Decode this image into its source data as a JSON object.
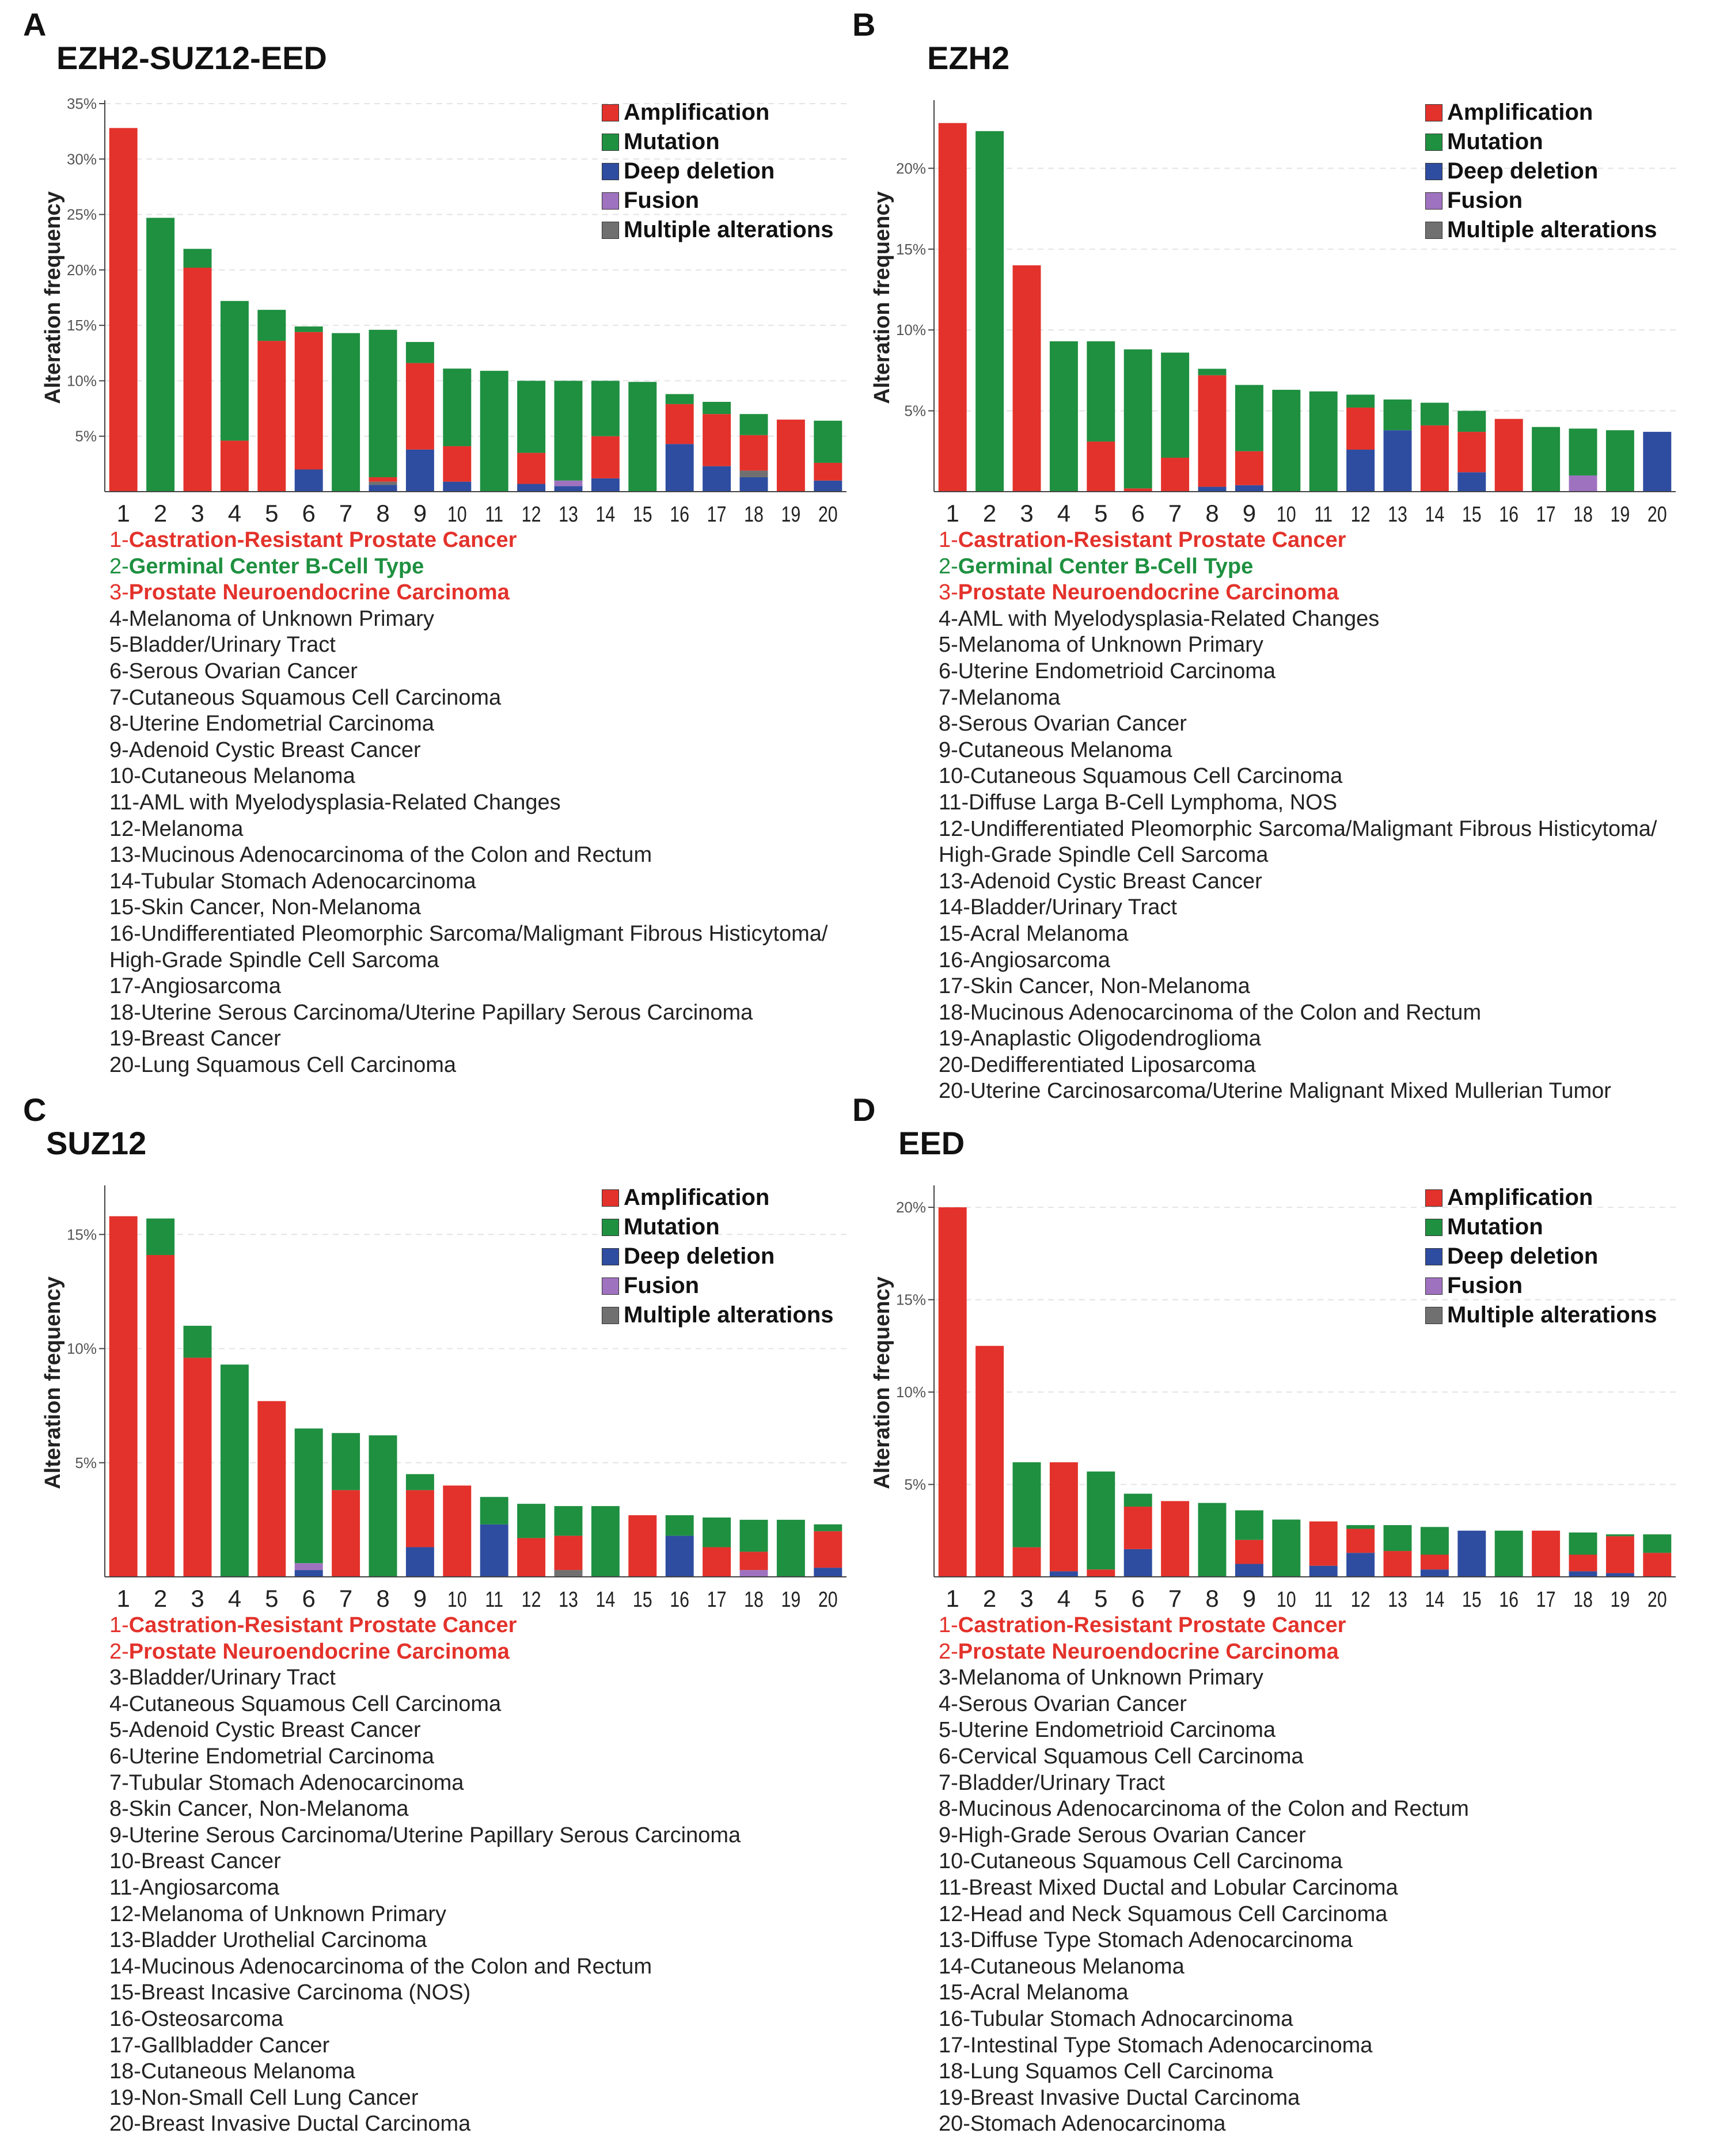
{
  "colors": {
    "amp": "#E3322B",
    "mut": "#1E9040",
    "del": "#2E4DA0",
    "fus": "#9F72C0",
    "mult": "#707070"
  },
  "legend": [
    {
      "key": "amp",
      "label": "Amplification"
    },
    {
      "key": "mut",
      "label": "Mutation"
    },
    {
      "key": "del",
      "label": "Deep deletion"
    },
    {
      "key": "fus",
      "label": "Fusion"
    },
    {
      "key": "mult",
      "label": "Multiple alterations"
    }
  ],
  "ylabel": "Alteration frequency",
  "chart_data": [
    {
      "type": "bar",
      "panel": "A",
      "title": "EZH2-SUZ12-EED",
      "ylim": [
        0,
        35
      ],
      "yticks": [
        5,
        10,
        15,
        20,
        25,
        30,
        35
      ],
      "categories": [
        "1",
        "2",
        "3",
        "4",
        "5",
        "6",
        "7",
        "8",
        "9",
        "10",
        "11",
        "12",
        "13",
        "14",
        "15",
        "16",
        "17",
        "18",
        "19",
        "20"
      ],
      "series": [
        {
          "name": "Deep deletion",
          "key": "del",
          "values": [
            0,
            0,
            0,
            0,
            0,
            2.0,
            0,
            0.6,
            3.8,
            0.9,
            0,
            0.7,
            0.5,
            1.2,
            0,
            4.3,
            2.3,
            1.3,
            0,
            1.0
          ]
        },
        {
          "name": "Fusion",
          "key": "fus",
          "values": [
            0,
            0,
            0,
            0,
            0,
            0,
            0,
            0,
            0,
            0,
            0,
            0,
            0.5,
            0,
            0,
            0,
            0,
            0,
            0,
            0
          ]
        },
        {
          "name": "Multiple alterations",
          "key": "mult",
          "values": [
            0,
            0,
            0,
            0,
            0,
            0,
            0,
            0.3,
            0,
            0,
            0,
            0,
            0,
            0,
            0,
            0,
            0,
            0.6,
            0,
            0
          ]
        },
        {
          "name": "Amplification",
          "key": "amp",
          "values": [
            32.8,
            0,
            20.2,
            4.6,
            13.6,
            12.4,
            0,
            0.4,
            7.8,
            3.2,
            0,
            2.8,
            0,
            3.8,
            0,
            3.6,
            4.7,
            3.2,
            6.5,
            1.6
          ]
        },
        {
          "name": "Mutation",
          "key": "mut",
          "values": [
            0,
            24.7,
            1.7,
            12.6,
            2.8,
            0.5,
            14.3,
            13.3,
            1.9,
            7.0,
            10.9,
            6.5,
            9.0,
            5.0,
            9.9,
            0.9,
            1.1,
            1.9,
            0,
            3.8
          ]
        }
      ],
      "list": [
        {
          "text": "1-Castration-Resistant Prostate Cancer",
          "color": "red"
        },
        {
          "text": "2-Germinal Center B-Cell Type",
          "color": "green"
        },
        {
          "text": "3-Prostate Neuroendocrine Carcinoma",
          "color": "red"
        },
        {
          "text": "4-Melanoma of Unknown Primary"
        },
        {
          "text": "5-Bladder/Urinary Tract"
        },
        {
          "text": "6-Serous Ovarian Cancer"
        },
        {
          "text": "7-Cutaneous Squamous Cell Carcinoma"
        },
        {
          "text": "8-Uterine Endometrial Carcinoma"
        },
        {
          "text": "9-Adenoid Cystic Breast Cancer"
        },
        {
          "text": "10-Cutaneous Melanoma"
        },
        {
          "text": "11-AML with Myelodysplasia-Related Changes"
        },
        {
          "text": "12-Melanoma"
        },
        {
          "text": "13-Mucinous Adenocarcinoma of the Colon and Rectum"
        },
        {
          "text": "14-Tubular Stomach Adenocarcinoma"
        },
        {
          "text": "15-Skin Cancer, Non-Melanoma"
        },
        {
          "text": "16-Undifferentiated Pleomorphic Sarcoma/Maligmant Fibrous Histicytoma/"
        },
        {
          "text": "High-Grade Spindle Cell Sarcoma"
        },
        {
          "text": "17-Angiosarcoma"
        },
        {
          "text": "18-Uterine Serous Carcinoma/Uterine Papillary Serous Carcinoma"
        },
        {
          "text": "19-Breast Cancer"
        },
        {
          "text": "20-Lung Squamous Cell Carcinoma"
        }
      ]
    },
    {
      "type": "bar",
      "panel": "B",
      "title": "EZH2",
      "ylim": [
        0,
        24
      ],
      "yticks": [
        5,
        10,
        15,
        20
      ],
      "categories": [
        "1",
        "2",
        "3",
        "4",
        "5",
        "6",
        "7",
        "8",
        "9",
        "10",
        "11",
        "12",
        "13",
        "14",
        "15",
        "16",
        "17",
        "18",
        "19",
        "20"
      ],
      "series": [
        {
          "name": "Deep deletion",
          "key": "del",
          "values": [
            0,
            0,
            0,
            0,
            0,
            0,
            0,
            0.3,
            0.4,
            0,
            0,
            2.6,
            3.8,
            0,
            1.2,
            0,
            0,
            0,
            0,
            3.7
          ]
        },
        {
          "name": "Fusion",
          "key": "fus",
          "values": [
            0,
            0,
            0,
            0,
            0,
            0,
            0,
            0,
            0,
            0,
            0,
            0,
            0,
            0,
            0,
            0,
            0,
            1.0,
            0,
            0
          ]
        },
        {
          "name": "Multiple alterations",
          "key": "mult",
          "values": [
            0,
            0,
            0,
            0,
            0,
            0,
            0,
            0,
            0,
            0,
            0,
            0,
            0,
            0,
            0,
            0,
            0,
            0,
            0,
            0
          ]
        },
        {
          "name": "Amplification",
          "key": "amp",
          "values": [
            22.8,
            0,
            14.0,
            0,
            3.1,
            0.2,
            2.1,
            6.9,
            2.1,
            0,
            0,
            2.6,
            0,
            4.1,
            2.5,
            4.5,
            0,
            0,
            0,
            0
          ]
        },
        {
          "name": "Mutation",
          "key": "mut",
          "values": [
            0,
            22.3,
            0,
            9.3,
            6.2,
            8.6,
            6.5,
            0.4,
            4.1,
            6.3,
            6.2,
            0.8,
            1.9,
            1.4,
            1.3,
            0,
            4.0,
            2.9,
            3.8,
            0
          ]
        }
      ],
      "list": [
        {
          "text": "1-Castration-Resistant Prostate Cancer",
          "color": "red"
        },
        {
          "text": "2-Germinal Center B-Cell Type",
          "color": "green"
        },
        {
          "text": "3-Prostate Neuroendocrine Carcinoma",
          "color": "red"
        },
        {
          "text": "4-AML with Myelodysplasia-Related Changes"
        },
        {
          "text": "5-Melanoma of Unknown Primary"
        },
        {
          "text": "6-Uterine Endometrioid Carcinoma"
        },
        {
          "text": "7-Melanoma"
        },
        {
          "text": "8-Serous Ovarian Cancer"
        },
        {
          "text": "9-Cutaneous Melanoma"
        },
        {
          "text": "10-Cutaneous Squamous Cell Carcinoma"
        },
        {
          "text": "11-Diffuse Larga B-Cell Lymphoma, NOS"
        },
        {
          "text": "12-Undifferentiated Pleomorphic Sarcoma/Maligmant Fibrous Histicytoma/"
        },
        {
          "text": "High-Grade Spindle Cell Sarcoma"
        },
        {
          "text": "13-Adenoid Cystic Breast Cancer"
        },
        {
          "text": "14-Bladder/Urinary Tract"
        },
        {
          "text": "15-Acral Melanoma"
        },
        {
          "text": "16-Angiosarcoma"
        },
        {
          "text": "17-Skin Cancer, Non-Melanoma"
        },
        {
          "text": "18-Mucinous Adenocarcinoma of the Colon and Rectum"
        },
        {
          "text": "19-Anaplastic Oligodendroglioma"
        },
        {
          "text": "20-Dedifferentiated Liposarcoma"
        },
        {
          "text": "20-Uterine Carcinosarcoma/Uterine Malignant Mixed Mullerian Tumor"
        }
      ]
    },
    {
      "type": "bar",
      "panel": "C",
      "title": "SUZ12",
      "ylim": [
        0,
        17
      ],
      "yticks": [
        5,
        10,
        15
      ],
      "categories": [
        "1",
        "2",
        "3",
        "4",
        "5",
        "6",
        "7",
        "8",
        "9",
        "10",
        "11",
        "12",
        "13",
        "14",
        "15",
        "16",
        "17",
        "18",
        "19",
        "20"
      ],
      "series": [
        {
          "name": "Deep deletion",
          "key": "del",
          "values": [
            0,
            0,
            0,
            0,
            0,
            0.3,
            0,
            0,
            1.3,
            0,
            2.3,
            0,
            0,
            0,
            0,
            1.8,
            0,
            0,
            0,
            0.4
          ]
        },
        {
          "name": "Fusion",
          "key": "fus",
          "values": [
            0,
            0,
            0,
            0,
            0,
            0.3,
            0,
            0,
            0,
            0,
            0,
            0,
            0,
            0,
            0,
            0,
            0,
            0.3,
            0,
            0
          ]
        },
        {
          "name": "Multiple alterations",
          "key": "mult",
          "values": [
            0,
            0,
            0,
            0,
            0,
            0,
            0,
            0,
            0,
            0,
            0,
            0,
            0.3,
            0,
            0,
            0,
            0,
            0,
            0,
            0
          ]
        },
        {
          "name": "Amplification",
          "key": "amp",
          "values": [
            15.8,
            14.1,
            9.6,
            0,
            7.7,
            0,
            3.8,
            0,
            2.5,
            4.0,
            0,
            1.7,
            1.5,
            0,
            2.7,
            0,
            1.3,
            0.8,
            0,
            1.6
          ]
        },
        {
          "name": "Mutation",
          "key": "mut",
          "values": [
            0,
            1.6,
            1.4,
            9.3,
            0,
            5.9,
            2.5,
            6.2,
            0.7,
            0,
            1.2,
            1.5,
            1.3,
            3.1,
            0,
            0.9,
            1.3,
            1.4,
            2.5,
            0.3
          ]
        }
      ],
      "list": [
        {
          "text": "1-Castration-Resistant Prostate Cancer",
          "color": "red"
        },
        {
          "text": "2-Prostate Neuroendocrine Carcinoma",
          "color": "red"
        },
        {
          "text": "3-Bladder/Urinary Tract"
        },
        {
          "text": "4-Cutaneous Squamous Cell Carcinoma"
        },
        {
          "text": "5-Adenoid Cystic Breast Cancer"
        },
        {
          "text": "6-Uterine Endometrial Carcinoma"
        },
        {
          "text": "7-Tubular Stomach Adenocarcinoma"
        },
        {
          "text": "8-Skin Cancer, Non-Melanoma"
        },
        {
          "text": "9-Uterine Serous Carcinoma/Uterine Papillary Serous Carcinoma"
        },
        {
          "text": "10-Breast Cancer"
        },
        {
          "text": "11-Angiosarcoma"
        },
        {
          "text": "12-Melanoma of Unknown Primary"
        },
        {
          "text": "13-Bladder Urothelial Carcinoma"
        },
        {
          "text": "14-Mucinous Adenocarcinoma of the Colon and Rectum"
        },
        {
          "text": "15-Breast Incasive Carcinoma (NOS)"
        },
        {
          "text": "16-Osteosarcoma"
        },
        {
          "text": "17-Gallbladder Cancer"
        },
        {
          "text": "18-Cutaneous Melanoma"
        },
        {
          "text": "19-Non-Small Cell Lung Cancer"
        },
        {
          "text": "20-Breast Invasive Ductal Carcinoma"
        }
      ]
    },
    {
      "type": "bar",
      "panel": "D",
      "title": "EED",
      "ylim": [
        0,
        21
      ],
      "yticks": [
        5,
        10,
        15,
        20
      ],
      "categories": [
        "1",
        "2",
        "3",
        "4",
        "5",
        "6",
        "7",
        "8",
        "9",
        "10",
        "11",
        "12",
        "13",
        "14",
        "15",
        "16",
        "17",
        "18",
        "19",
        "20"
      ],
      "series": [
        {
          "name": "Deep deletion",
          "key": "del",
          "values": [
            0,
            0,
            0,
            0.3,
            0,
            1.5,
            0,
            0,
            0.7,
            0,
            0.6,
            1.3,
            0,
            0.4,
            2.5,
            0,
            0,
            0.3,
            0.2,
            0
          ]
        },
        {
          "name": "Fusion",
          "key": "fus",
          "values": [
            0,
            0,
            0,
            0,
            0,
            0,
            0,
            0,
            0,
            0,
            0,
            0,
            0,
            0,
            0,
            0,
            0,
            0,
            0,
            0
          ]
        },
        {
          "name": "Multiple alterations",
          "key": "mult",
          "values": [
            0,
            0,
            0,
            0,
            0,
            0,
            0,
            0,
            0,
            0,
            0,
            0,
            0,
            0,
            0,
            0,
            0,
            0,
            0,
            0
          ]
        },
        {
          "name": "Amplification",
          "key": "amp",
          "values": [
            20.0,
            12.5,
            1.6,
            5.9,
            0.4,
            2.3,
            4.1,
            0,
            1.3,
            0,
            2.4,
            1.3,
            1.4,
            0.8,
            0,
            0,
            2.5,
            0.9,
            2.0,
            1.3
          ]
        },
        {
          "name": "Mutation",
          "key": "mut",
          "values": [
            0,
            0,
            4.6,
            0,
            5.3,
            0.7,
            0,
            4.0,
            1.6,
            3.1,
            0,
            0.2,
            1.4,
            1.5,
            0,
            2.5,
            0,
            1.2,
            0.1,
            1.0
          ]
        }
      ],
      "list": [
        {
          "text": "1-Castration-Resistant Prostate Cancer",
          "color": "red"
        },
        {
          "text": "2-Prostate Neuroendocrine Carcinoma",
          "color": "red"
        },
        {
          "text": "3-Melanoma of Unknown Primary"
        },
        {
          "text": "4-Serous Ovarian Cancer"
        },
        {
          "text": "5-Uterine Endometrioid Carcinoma"
        },
        {
          "text": "6-Cervical Squamous Cell Carcinoma"
        },
        {
          "text": "7-Bladder/Urinary Tract"
        },
        {
          "text": "8-Mucinous Adenocarcinoma of the Colon and Rectum"
        },
        {
          "text": "9-High-Grade Serous Ovarian Cancer"
        },
        {
          "text": "10-Cutaneous Squamous Cell Carcinoma"
        },
        {
          "text": "11-Breast Mixed Ductal and Lobular Carcinoma"
        },
        {
          "text": "12-Head and Neck Squamous Cell Carcinoma"
        },
        {
          "text": "13-Diffuse Type Stomach Adenocarcinoma"
        },
        {
          "text": "14-Cutaneous Melanoma"
        },
        {
          "text": "15-Acral Melanoma"
        },
        {
          "text": "16-Tubular Stomach Adnocarcinoma"
        },
        {
          "text": "17-Intestinal Type Stomach Adenocarcinoma"
        },
        {
          "text": "18-Lung Squamos Cell Carcinoma"
        },
        {
          "text": "19-Breast Invasive Ductal Carcinoma"
        },
        {
          "text": "20-Stomach Adenocarcinoma"
        }
      ]
    }
  ]
}
